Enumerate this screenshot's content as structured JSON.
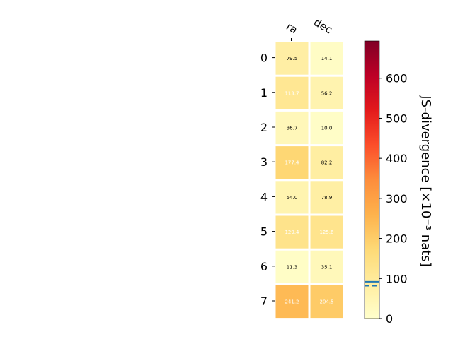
{
  "chart_data": {
    "type": "heatmap",
    "columns": [
      "ra",
      "dec"
    ],
    "rows": [
      "0",
      "1",
      "2",
      "3",
      "4",
      "5",
      "6",
      "7"
    ],
    "values": [
      [
        79.5,
        14.1
      ],
      [
        113.7,
        56.2
      ],
      [
        36.7,
        10.0
      ],
      [
        177.4,
        82.2
      ],
      [
        54.0,
        78.9
      ],
      [
        129.4,
        125.6
      ],
      [
        11.3,
        35.1
      ],
      [
        241.2,
        204.5
      ]
    ],
    "value_labels": [
      [
        "79.5",
        "14.1"
      ],
      [
        "113.7",
        "56.2"
      ],
      [
        "36.7",
        "10.0"
      ],
      [
        "177.4",
        "82.2"
      ],
      [
        "54.0",
        "78.9"
      ],
      [
        "129.4",
        "125.6"
      ],
      [
        "11.3",
        "35.1"
      ],
      [
        "241.2",
        "204.5"
      ]
    ],
    "colormap": "YlOrRd",
    "colorbar": {
      "label": "JS-divergence [×10⁻³ nats]",
      "range": [
        0,
        693
      ],
      "ticks": [
        0,
        100,
        200,
        300,
        400,
        500,
        600
      ],
      "markers": [
        {
          "value": 92,
          "style": "solid",
          "color": "#1f77b4"
        },
        {
          "value": 82,
          "style": "dashed",
          "color": "#1f77b4"
        }
      ]
    }
  }
}
